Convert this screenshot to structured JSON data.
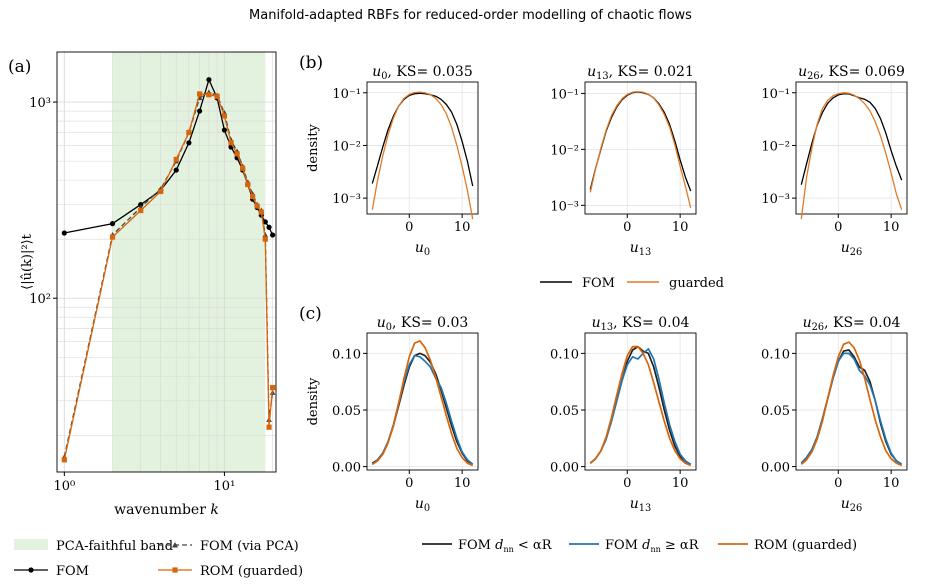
{
  "suptitle": "Manifold-adapted RBFs for reduced-order modelling of chaotic flows",
  "colors": {
    "fom": "#000000",
    "pca": "#444444",
    "rom": "#d9650a",
    "guarded": "#e07b27",
    "near": "#222222",
    "far": "#1f77b4",
    "rom_c": "#d9650a",
    "band": "#e3f1df"
  },
  "chart_data": [
    {
      "panel": "(a)",
      "type": "line",
      "xlabel": "wavenumber k",
      "ylabel": "⟨|û(k)|²⟩t",
      "xscale": "log",
      "yscale": "log",
      "xlim": [
        0.9,
        21
      ],
      "ylim": [
        13,
        1800
      ],
      "xticks": [
        {
          "v": 1,
          "t": "10⁰"
        },
        {
          "v": 10,
          "t": "10¹"
        }
      ],
      "yticks": [
        {
          "v": 100,
          "t": "10²"
        },
        {
          "v": 1000,
          "t": "10³"
        }
      ],
      "band": {
        "x0": 2,
        "x1": 18,
        "label": "PCA-faithful band"
      },
      "x": [
        1,
        2,
        3,
        4,
        5,
        6,
        7,
        8,
        9,
        10,
        11,
        12,
        13,
        14,
        15,
        16,
        17,
        18,
        19,
        20
      ],
      "series": [
        {
          "name": "FOM",
          "color": "#000000",
          "marker": "circle",
          "dash": "",
          "values": [
            215,
            240,
            300,
            355,
            450,
            620,
            900,
            1300,
            1050,
            720,
            590,
            520,
            450,
            380,
            320,
            290,
            265,
            245,
            230,
            210
          ]
        },
        {
          "name": "FOM (via PCA)",
          "color": "#444444",
          "marker": "triangle",
          "dash": "5,3",
          "values": [
            15.5,
            210,
            290,
            360,
            500,
            700,
            1050,
            1120,
            1080,
            880,
            640,
            560,
            470,
            390,
            340,
            300,
            280,
            210,
            24,
            33
          ]
        },
        {
          "name": "ROM (guarded)",
          "color": "#d9650a",
          "marker": "square",
          "dash": "",
          "values": [
            15,
            205,
            280,
            350,
            510,
            700,
            1100,
            1090,
            1070,
            850,
            620,
            545,
            460,
            380,
            330,
            295,
            275,
            200,
            22,
            35
          ]
        }
      ]
    },
    {
      "panel": "(b)",
      "type": "line",
      "yscale": "log",
      "title": "u0, KS= 0.035",
      "xlabel": "u0",
      "ylabel": "density",
      "xlim": [
        -8,
        13
      ],
      "ylim": [
        0.0005,
        0.16
      ],
      "xticks": [
        {
          "v": 0,
          "t": "0"
        },
        {
          "v": 10,
          "t": "10"
        }
      ],
      "yticks": [
        {
          "v": 0.001,
          "t": "10⁻³"
        },
        {
          "v": 0.01,
          "t": "10⁻²"
        },
        {
          "v": 0.1,
          "t": "10⁻¹"
        }
      ],
      "x": [
        -7,
        -6,
        -5,
        -4,
        -3,
        -2,
        -1,
        0,
        1,
        2,
        3,
        4,
        5,
        6,
        7,
        8,
        9,
        10,
        11,
        12
      ],
      "series": [
        {
          "name": "FOM",
          "color": "#000000",
          "values": [
            0.0019,
            0.0042,
            0.0095,
            0.02,
            0.036,
            0.056,
            0.075,
            0.089,
            0.096,
            0.098,
            0.096,
            0.092,
            0.086,
            0.075,
            0.06,
            0.043,
            0.025,
            0.012,
            0.005,
            0.0017
          ]
        },
        {
          "name": "guarded",
          "color": "#e07b27",
          "values": [
            0.0006,
            0.0022,
            0.0065,
            0.016,
            0.033,
            0.056,
            0.078,
            0.093,
            0.101,
            0.103,
            0.1,
            0.092,
            0.078,
            0.06,
            0.04,
            0.022,
            0.01,
            0.004,
            0.0014,
            0.0004
          ]
        }
      ]
    },
    {
      "panel": "",
      "type": "line",
      "yscale": "log",
      "title": "u13, KS= 0.021",
      "xlabel": "u13",
      "ylabel": "",
      "xlim": [
        -8,
        13
      ],
      "ylim": [
        0.0007,
        0.16
      ],
      "xticks": [
        {
          "v": 0,
          "t": "0"
        },
        {
          "v": 10,
          "t": "10"
        }
      ],
      "yticks": [
        {
          "v": 0.001,
          "t": "10⁻³"
        },
        {
          "v": 0.01,
          "t": "10⁻²"
        },
        {
          "v": 0.1,
          "t": "10⁻¹"
        }
      ],
      "x": [
        -7,
        -6,
        -5,
        -4,
        -3,
        -2,
        -1,
        0,
        1,
        2,
        3,
        4,
        5,
        6,
        7,
        8,
        9,
        10,
        11,
        12
      ],
      "series": [
        {
          "name": "FOM",
          "color": "#000000",
          "values": [
            0.0019,
            0.0046,
            0.01,
            0.021,
            0.037,
            0.057,
            0.077,
            0.093,
            0.103,
            0.106,
            0.103,
            0.096,
            0.083,
            0.065,
            0.046,
            0.028,
            0.014,
            0.0065,
            0.0032,
            0.0018
          ]
        },
        {
          "name": "guarded",
          "color": "#e07b27",
          "values": [
            0.0017,
            0.0045,
            0.0105,
            0.022,
            0.04,
            0.06,
            0.08,
            0.096,
            0.105,
            0.108,
            0.105,
            0.097,
            0.082,
            0.062,
            0.042,
            0.025,
            0.012,
            0.005,
            0.0022,
            0.0009
          ]
        }
      ]
    },
    {
      "panel": "",
      "type": "line",
      "yscale": "log",
      "title": "u26, KS= 0.069",
      "xlabel": "u26",
      "ylabel": "",
      "xlim": [
        -8,
        13
      ],
      "ylim": [
        0.0005,
        0.16
      ],
      "xticks": [
        {
          "v": 0,
          "t": "0"
        },
        {
          "v": 10,
          "t": "10"
        }
      ],
      "yticks": [
        {
          "v": 0.001,
          "t": "10⁻³"
        },
        {
          "v": 0.01,
          "t": "10⁻²"
        },
        {
          "v": 0.1,
          "t": "10⁻¹"
        }
      ],
      "x": [
        -7,
        -6,
        -5,
        -4,
        -3,
        -2,
        -1,
        0,
        1,
        2,
        3,
        4,
        5,
        6,
        7,
        8,
        9,
        10,
        11,
        12
      ],
      "series": [
        {
          "name": "FOM",
          "color": "#000000",
          "values": [
            0.0018,
            0.0045,
            0.011,
            0.024,
            0.042,
            0.063,
            0.08,
            0.091,
            0.096,
            0.095,
            0.088,
            0.08,
            0.075,
            0.066,
            0.05,
            0.032,
            0.017,
            0.008,
            0.004,
            0.0022
          ]
        },
        {
          "name": "guarded",
          "color": "#e07b27",
          "values": [
            0.0004,
            0.0025,
            0.009,
            0.025,
            0.05,
            0.072,
            0.087,
            0.096,
            0.1,
            0.098,
            0.09,
            0.077,
            0.062,
            0.045,
            0.028,
            0.015,
            0.007,
            0.003,
            0.0012,
            0.0006
          ]
        }
      ]
    },
    {
      "panel": "(c)",
      "type": "line",
      "yscale": "linear",
      "title": "u0, KS= 0.03",
      "xlabel": "u0",
      "ylabel": "density",
      "xlim": [
        -8,
        13
      ],
      "ylim": [
        -0.003,
        0.118
      ],
      "xticks": [
        {
          "v": 0,
          "t": "0"
        },
        {
          "v": 10,
          "t": "10"
        }
      ],
      "yticks": [
        {
          "v": 0,
          "t": "0.00"
        },
        {
          "v": 0.05,
          "t": "0.05"
        },
        {
          "v": 0.1,
          "t": "0.10"
        }
      ],
      "x": [
        -7,
        -6,
        -5,
        -4,
        -3,
        -2,
        -1,
        0,
        1,
        2,
        3,
        4,
        5,
        6,
        7,
        8,
        9,
        10,
        11,
        12
      ],
      "series": [
        {
          "name": "FOM d<αR",
          "color": "#222222",
          "values": [
            0.003,
            0.006,
            0.012,
            0.022,
            0.036,
            0.054,
            0.072,
            0.088,
            0.098,
            0.1,
            0.098,
            0.092,
            0.082,
            0.068,
            0.052,
            0.036,
            0.022,
            0.012,
            0.005,
            0.002
          ]
        },
        {
          "name": "FOM d≥αR",
          "color": "#1f77b4",
          "values": [
            0.002,
            0.006,
            0.012,
            0.022,
            0.037,
            0.056,
            0.075,
            0.09,
            0.098,
            0.097,
            0.093,
            0.088,
            0.078,
            0.07,
            0.056,
            0.04,
            0.025,
            0.013,
            0.006,
            0.002
          ]
        },
        {
          "name": "ROM (guarded)",
          "color": "#d9650a",
          "values": [
            0.002,
            0.005,
            0.011,
            0.021,
            0.036,
            0.056,
            0.078,
            0.097,
            0.109,
            0.111,
            0.105,
            0.094,
            0.079,
            0.062,
            0.045,
            0.029,
            0.016,
            0.008,
            0.003,
            0.001
          ]
        }
      ]
    },
    {
      "panel": "",
      "type": "line",
      "yscale": "linear",
      "title": "u13, KS= 0.04",
      "xlabel": "u13",
      "ylabel": "",
      "xlim": [
        -8,
        13
      ],
      "ylim": [
        -0.003,
        0.118
      ],
      "xticks": [
        {
          "v": 0,
          "t": "0"
        },
        {
          "v": 10,
          "t": "10"
        }
      ],
      "yticks": [
        {
          "v": 0,
          "t": "0.00"
        },
        {
          "v": 0.05,
          "t": "0.05"
        },
        {
          "v": 0.1,
          "t": "0.10"
        }
      ],
      "x": [
        -7,
        -6,
        -5,
        -4,
        -3,
        -2,
        -1,
        0,
        1,
        2,
        3,
        4,
        5,
        6,
        7,
        8,
        9,
        10,
        11,
        12
      ],
      "series": [
        {
          "name": "FOM d<αR",
          "color": "#222222",
          "values": [
            0.003,
            0.007,
            0.014,
            0.025,
            0.04,
            0.058,
            0.076,
            0.093,
            0.103,
            0.106,
            0.102,
            0.1,
            0.088,
            0.07,
            0.05,
            0.032,
            0.018,
            0.009,
            0.004,
            0.002
          ]
        },
        {
          "name": "FOM d≥αR",
          "color": "#1f77b4",
          "values": [
            0.003,
            0.007,
            0.014,
            0.024,
            0.04,
            0.058,
            0.076,
            0.09,
            0.097,
            0.095,
            0.1,
            0.104,
            0.095,
            0.077,
            0.056,
            0.037,
            0.022,
            0.011,
            0.005,
            0.002
          ]
        },
        {
          "name": "ROM (guarded)",
          "color": "#d9650a",
          "values": [
            0.003,
            0.007,
            0.014,
            0.026,
            0.043,
            0.063,
            0.082,
            0.098,
            0.106,
            0.106,
            0.1,
            0.09,
            0.074,
            0.057,
            0.04,
            0.025,
            0.014,
            0.007,
            0.003,
            0.001
          ]
        }
      ]
    },
    {
      "panel": "",
      "type": "line",
      "yscale": "linear",
      "title": "u26, KS= 0.04",
      "xlabel": "u26",
      "ylabel": "",
      "xlim": [
        -8,
        13
      ],
      "ylim": [
        -0.003,
        0.118
      ],
      "xticks": [
        {
          "v": 0,
          "t": "0"
        },
        {
          "v": 10,
          "t": "10"
        }
      ],
      "yticks": [
        {
          "v": 0,
          "t": "0.00"
        },
        {
          "v": 0.05,
          "t": "0.05"
        },
        {
          "v": 0.1,
          "t": "0.10"
        }
      ],
      "x": [
        -7,
        -6,
        -5,
        -4,
        -3,
        -2,
        -1,
        0,
        1,
        2,
        3,
        4,
        5,
        6,
        7,
        8,
        9,
        10,
        11,
        12
      ],
      "series": [
        {
          "name": "FOM d<αR",
          "color": "#222222",
          "values": [
            0.003,
            0.008,
            0.015,
            0.026,
            0.042,
            0.06,
            0.078,
            0.093,
            0.102,
            0.103,
            0.097,
            0.088,
            0.085,
            0.075,
            0.058,
            0.038,
            0.022,
            0.011,
            0.005,
            0.002
          ]
        },
        {
          "name": "FOM d≥αR",
          "color": "#1f77b4",
          "values": [
            0.003,
            0.008,
            0.015,
            0.026,
            0.042,
            0.06,
            0.078,
            0.093,
            0.1,
            0.1,
            0.095,
            0.085,
            0.08,
            0.072,
            0.058,
            0.04,
            0.024,
            0.012,
            0.005,
            0.002
          ]
        },
        {
          "name": "ROM (guarded)",
          "color": "#d9650a",
          "values": [
            0.002,
            0.006,
            0.013,
            0.024,
            0.04,
            0.06,
            0.08,
            0.097,
            0.108,
            0.11,
            0.105,
            0.094,
            0.078,
            0.059,
            0.041,
            0.026,
            0.014,
            0.007,
            0.003,
            0.001
          ]
        }
      ]
    }
  ],
  "legend_a": [
    {
      "label": "PCA-faithful band",
      "kind": "band"
    },
    {
      "label": "FOM (via PCA)",
      "kind": "pca"
    },
    {
      "label": "FOM",
      "kind": "fom"
    },
    {
      "label": "ROM (guarded)",
      "kind": "rom"
    }
  ],
  "legend_b": [
    {
      "label": "FOM",
      "color": "#000000"
    },
    {
      "label": "guarded",
      "color": "#e07b27"
    }
  ],
  "legend_c": [
    {
      "label": "FOM d",
      "sub": "nn",
      "rest": " < αR",
      "color": "#222222"
    },
    {
      "label": "FOM d",
      "sub": "nn",
      "rest": " ≥ αR",
      "color": "#1f77b4"
    },
    {
      "label": "ROM (guarded)",
      "sub": "",
      "rest": "",
      "color": "#d9650a"
    }
  ]
}
